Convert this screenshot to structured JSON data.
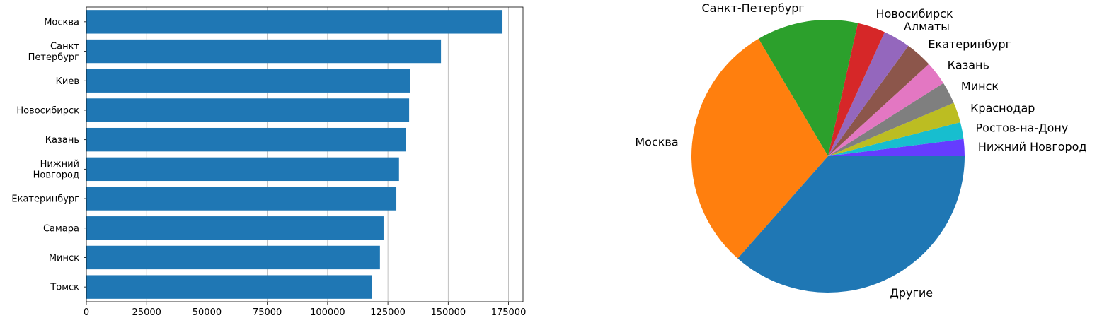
{
  "chart_data": [
    {
      "type": "bar",
      "orientation": "horizontal",
      "categories": [
        [
          "Москва"
        ],
        [
          "Санкт",
          "Петербург"
        ],
        [
          "Киев"
        ],
        [
          "Новосибирск"
        ],
        [
          "Казань"
        ],
        [
          "Нижний",
          "Новгород"
        ],
        [
          "Екатеринбург"
        ],
        [
          "Самара"
        ],
        [
          "Минск"
        ],
        [
          "Томск"
        ]
      ],
      "values": [
        172500,
        147000,
        134200,
        133800,
        132400,
        129600,
        128500,
        123200,
        121700,
        118500
      ],
      "color": "#1f77b4",
      "xlim": [
        0,
        181000
      ],
      "xticks": [
        0,
        25000,
        50000,
        75000,
        100000,
        125000,
        150000,
        175000
      ],
      "xtick_labels": [
        "0",
        "25000",
        "50000",
        "75000",
        "100000",
        "125000",
        "150000",
        "175000"
      ],
      "grid": "x-axis vertical gridlines",
      "title": "",
      "xlabel": "",
      "ylabel": ""
    },
    {
      "type": "pie",
      "start_angle_deg": 0,
      "direction": "counterclockwise",
      "slices": [
        {
          "label": "Нижний Новгород",
          "value": 2.0,
          "color": "#653cff"
        },
        {
          "label": "Ростов-на-Дону",
          "value": 2.0,
          "color": "#17becf"
        },
        {
          "label": "Краснодар",
          "value": 2.4,
          "color": "#bcbd22"
        },
        {
          "label": "Минск",
          "value": 2.6,
          "color": "#7f7f7f"
        },
        {
          "label": "Казань",
          "value": 2.8,
          "color": "#e377c2"
        },
        {
          "label": "Екатеринбург",
          "value": 3.2,
          "color": "#8c564b"
        },
        {
          "label": "Алматы",
          "value": 3.2,
          "color": "#9467bd"
        },
        {
          "label": "Новосибирск",
          "value": 3.3,
          "color": "#d62728"
        },
        {
          "label": "Санкт-Петербург",
          "value": 12.0,
          "color": "#2ca02c"
        },
        {
          "label": "Москва",
          "value": 30.0,
          "color": "#ff7f0e"
        },
        {
          "label": "Другие",
          "value": 36.5,
          "color": "#1f77b4"
        }
      ]
    }
  ]
}
